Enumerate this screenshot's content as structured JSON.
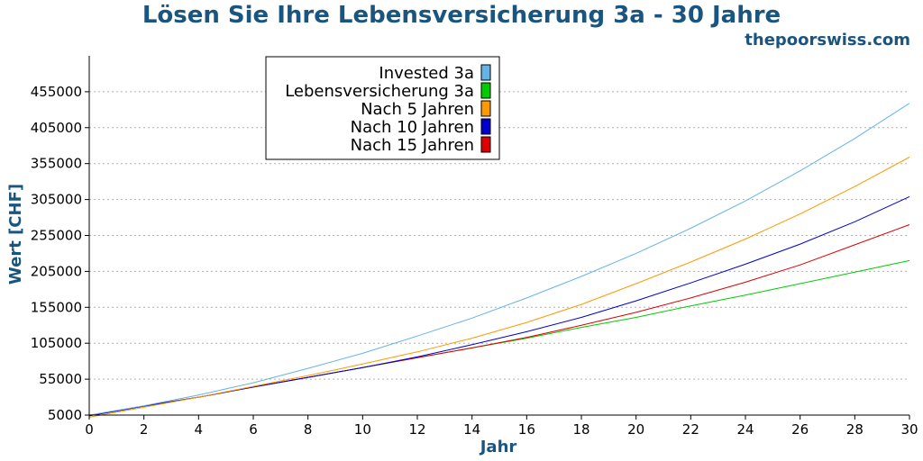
{
  "chart_data": {
    "type": "line",
    "title": "Lösen Sie Ihre Lebensversicherung 3a - 30 Jahre",
    "watermark": "thepoorswiss.com",
    "xlabel": "Jahr",
    "ylabel": "Wert [CHF]",
    "xlim": [
      0,
      30
    ],
    "ylim": [
      5000,
      505000
    ],
    "x_ticks": [
      0,
      2,
      4,
      6,
      8,
      10,
      12,
      14,
      16,
      18,
      20,
      22,
      24,
      26,
      28,
      30
    ],
    "y_ticks": [
      5000,
      55000,
      105000,
      155000,
      205000,
      255000,
      305000,
      355000,
      405000,
      455000
    ],
    "grid": "horizontal dotted",
    "legend_position": "top-left",
    "x": [
      0,
      2,
      4,
      6,
      8,
      10,
      12,
      14,
      16,
      18,
      20,
      22,
      24,
      26,
      28,
      30
    ],
    "series": [
      {
        "name": "Invested 3a",
        "color": "#64b4e6",
        "values": [
          5000,
          18000,
          33000,
          50000,
          70000,
          91000,
          115000,
          140000,
          168000,
          198000,
          230000,
          265000,
          303000,
          345000,
          390000,
          439000
        ]
      },
      {
        "name": "Lebensversicherung 3a",
        "color": "#00cc00",
        "values": [
          4000,
          17500,
          30000,
          44000,
          57500,
          71000,
          85000,
          98500,
          112000,
          127000,
          141000,
          157000,
          172000,
          188000,
          204000,
          220000
        ]
      },
      {
        "name": "Nach 5 Jahren",
        "color": "#ff9900",
        "values": [
          2000,
          16000,
          30000,
          45000,
          60000,
          76000,
          93000,
          112000,
          134000,
          159000,
          188000,
          218000,
          250000,
          285000,
          323000,
          364000
        ]
      },
      {
        "name": "Nach 10 Jahren",
        "color": "#0000cc",
        "values": [
          4000,
          17500,
          30000,
          44000,
          57500,
          71000,
          86000,
          103000,
          121000,
          141000,
          164000,
          189000,
          215000,
          243000,
          274000,
          309000
        ]
      },
      {
        "name": "Nach 15 Jahren",
        "color": "#dd0000",
        "values": [
          4000,
          17500,
          30000,
          44000,
          57500,
          71000,
          85000,
          98500,
          113000,
          130000,
          148000,
          168000,
          190000,
          214000,
          242000,
          270000
        ]
      }
    ]
  }
}
